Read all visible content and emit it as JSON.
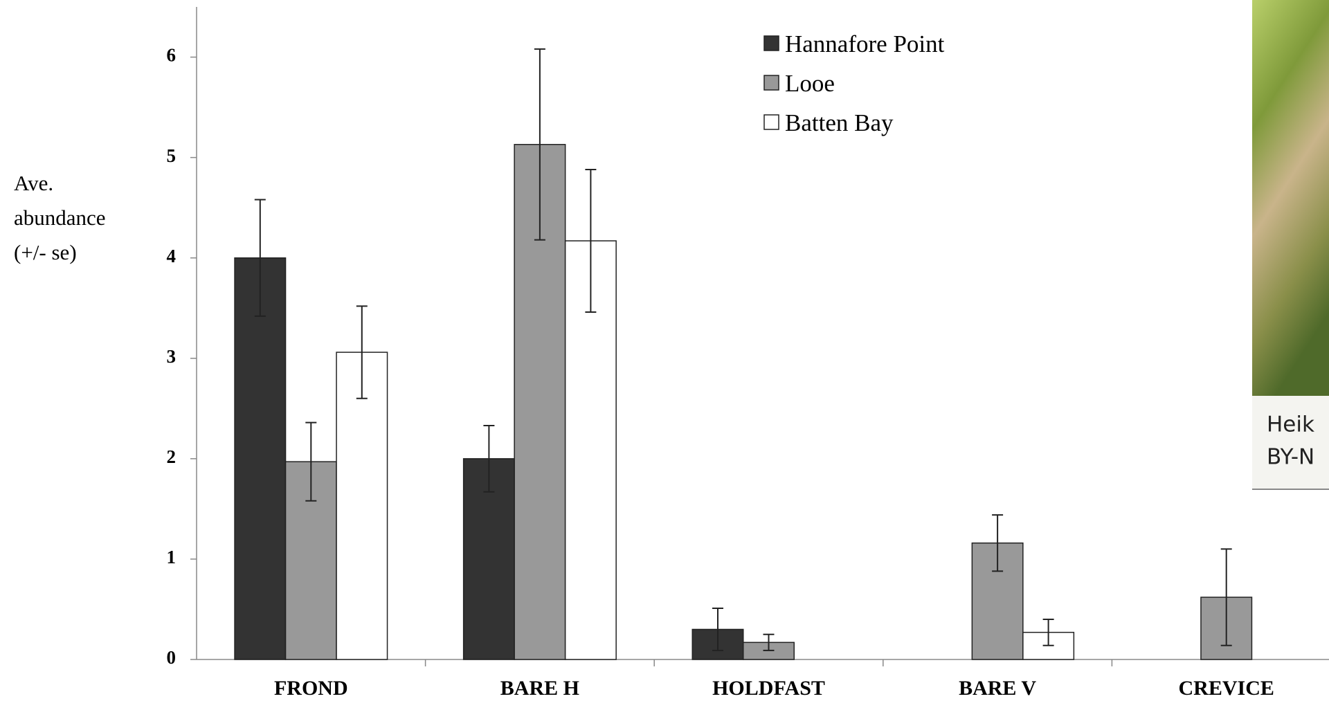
{
  "chart_data": {
    "type": "bar",
    "ylabel_lines": [
      "Ave.",
      "abundance",
      "(+/- se)"
    ],
    "categories": [
      "FROND",
      "BARE H",
      "HOLDFAST",
      "BARE V",
      "CREVICE"
    ],
    "series": [
      {
        "name": "Hannafore Point",
        "color": "#333333",
        "values": [
          4.0,
          2.0,
          0.3,
          0,
          0
        ],
        "errors": [
          0.58,
          0.33,
          0.21,
          0,
          0
        ]
      },
      {
        "name": "Looe",
        "color": "#999999",
        "values": [
          1.97,
          5.13,
          0.17,
          1.16,
          0.62
        ],
        "errors": [
          0.39,
          0.95,
          0.08,
          0.28,
          0.48
        ]
      },
      {
        "name": "Batten Bay",
        "color": "#ffffff",
        "values": [
          3.06,
          4.17,
          0,
          0.27,
          0
        ],
        "errors": [
          0.46,
          0.71,
          0,
          0.13,
          0
        ]
      }
    ],
    "ylim": [
      0,
      6.5
    ],
    "yticks": [
      0,
      1,
      2,
      3,
      4,
      5,
      6
    ],
    "legend": "top-center"
  },
  "photo": {
    "caption_lines": [
      "Heik",
      "BY-N"
    ]
  }
}
